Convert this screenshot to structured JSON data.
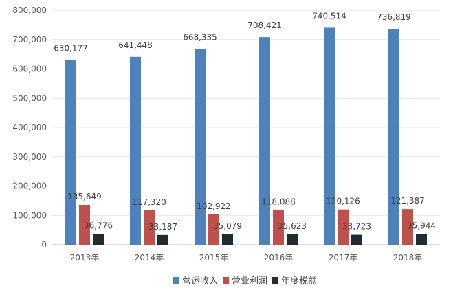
{
  "chart_data": {
    "type": "bar",
    "title": "",
    "xlabel": "",
    "ylabel": "",
    "categories": [
      "2013年",
      "2014年",
      "2015年",
      "2016年",
      "2017年",
      "2018年"
    ],
    "series": [
      {
        "name": "营运收入",
        "color": "#4F81BD",
        "values": [
          630177,
          641448,
          668335,
          708421,
          740514,
          736819
        ],
        "labels": [
          "630,177",
          "641,448",
          "668,335",
          "708,421",
          "740,514",
          "736,819"
        ]
      },
      {
        "name": "营业利润",
        "color": "#C0504D",
        "values": [
          135649,
          117320,
          102922,
          118088,
          120126,
          121387
        ],
        "labels": [
          "135,649",
          "117,320",
          "102,922",
          "118,088",
          "120,126",
          "121,387"
        ]
      },
      {
        "name": "年度税额",
        "color": "#1F2D33",
        "values": [
          36776,
          33187,
          35079,
          35623,
          33723,
          35944
        ],
        "labels": [
          "36,776",
          "33,187",
          "35,079",
          "35,623",
          "33,723",
          "35,944"
        ]
      }
    ],
    "ylim": [
      0,
      800000
    ],
    "yticks": [
      0,
      100000,
      200000,
      300000,
      400000,
      500000,
      600000,
      700000,
      800000
    ],
    "ytick_labels": [
      "0",
      "100,000",
      "200,000",
      "300,000",
      "400,000",
      "500,000",
      "600,000",
      "700,000",
      "800,000"
    ],
    "grid": true,
    "legend_position": "bottom"
  }
}
